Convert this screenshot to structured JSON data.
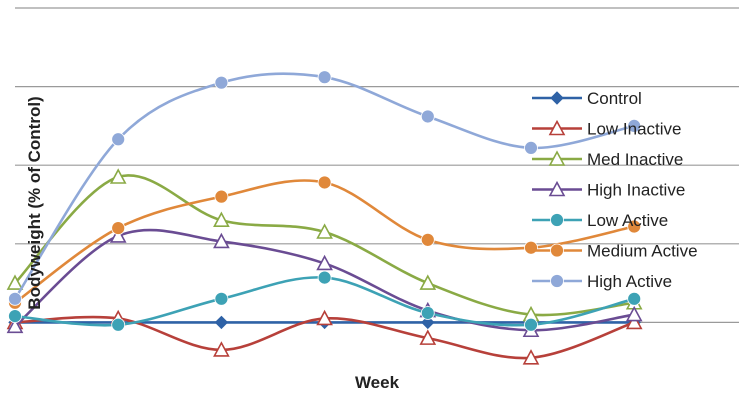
{
  "chart_data": {
    "type": "line",
    "title": "",
    "xlabel": "Week",
    "ylabel": "Bodyweight (% of Control)",
    "x": [
      0,
      1,
      2,
      3,
      4,
      5,
      6
    ],
    "ylim": [
      0,
      5
    ],
    "grid": true,
    "smooth": true,
    "legend_position": "right",
    "series": [
      {
        "name": "Control",
        "color": "#2F62A6",
        "marker": "diamond",
        "values": [
          1.0,
          1.0,
          1.0,
          1.0,
          1.0,
          1.0,
          1.0
        ]
      },
      {
        "name": "Low Inactive",
        "color": "#B7403A",
        "marker": "triangle-open",
        "values": [
          1.0,
          1.05,
          0.65,
          1.05,
          0.8,
          0.55,
          1.0
        ]
      },
      {
        "name": "Med Inactive",
        "color": "#8AAA45",
        "marker": "triangle-open",
        "values": [
          1.5,
          2.85,
          2.3,
          2.15,
          1.5,
          1.1,
          1.25
        ]
      },
      {
        "name": "High Inactive",
        "color": "#6A4C93",
        "marker": "triangle-open",
        "values": [
          0.95,
          2.1,
          2.03,
          1.75,
          1.15,
          0.9,
          1.1
        ]
      },
      {
        "name": "Low Active",
        "color": "#3DA2B5",
        "marker": "circle",
        "values": [
          1.08,
          0.97,
          1.3,
          1.57,
          1.12,
          0.97,
          1.3
        ]
      },
      {
        "name": "Medium Active",
        "color": "#E0883A",
        "marker": "circle",
        "values": [
          1.25,
          2.2,
          2.6,
          2.78,
          2.05,
          1.95,
          2.22
        ]
      },
      {
        "name": "High Active",
        "color": "#8FA8D8",
        "marker": "circle",
        "values": [
          1.3,
          3.33,
          4.05,
          4.12,
          3.62,
          3.22,
          3.5
        ]
      }
    ]
  }
}
